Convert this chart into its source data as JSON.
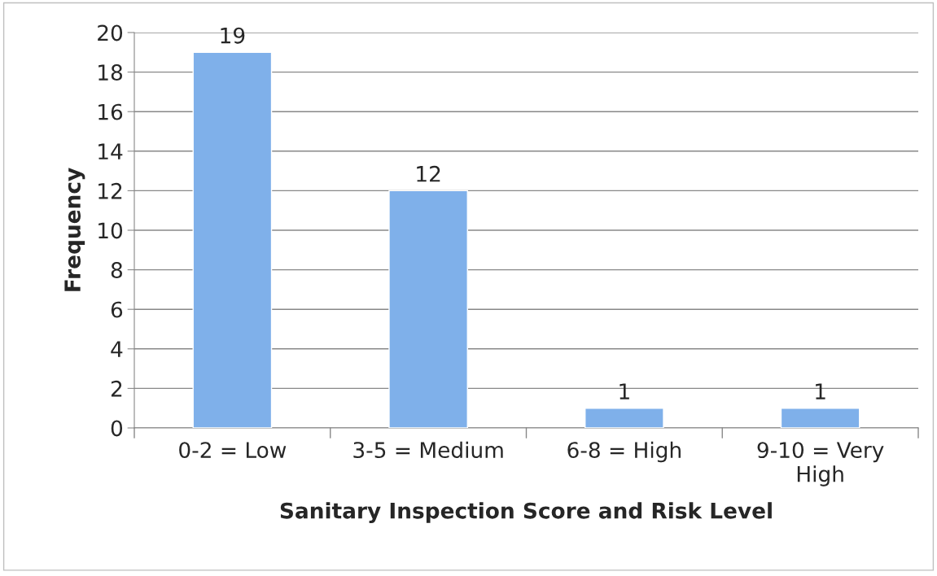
{
  "chart_data": {
    "type": "bar",
    "xlabel": "Sanitary Inspection Score and Risk Level",
    "ylabel": "Frequency",
    "categories": [
      "0-2 = Low",
      "3-5 = Medium",
      "6-8 = High",
      "9-10 = Very\nHigh"
    ],
    "values": [
      19,
      12,
      1,
      1
    ],
    "color": "#7fb0ea",
    "ylim": [
      0,
      20
    ],
    "yticks": [
      0,
      2,
      4,
      6,
      8,
      10,
      12,
      14,
      16,
      18,
      20
    ],
    "grid": "y",
    "data_labels": true
  }
}
